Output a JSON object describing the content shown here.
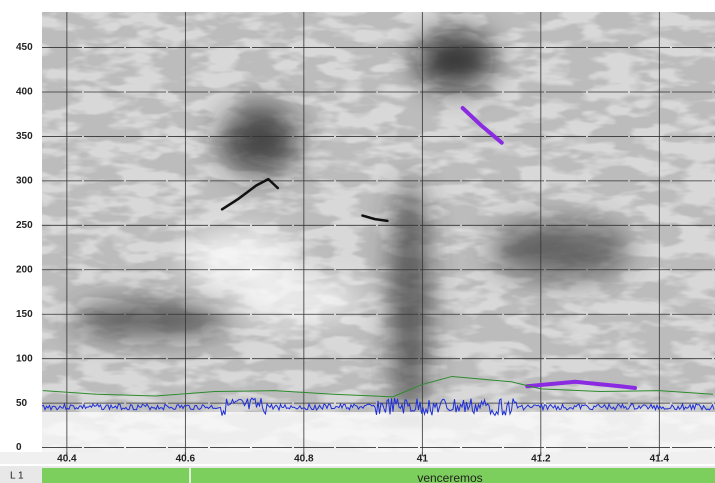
{
  "chart_data": {
    "type": "line",
    "xlim": [
      40.358,
      41.494
    ],
    "ylim": [
      -5,
      490
    ],
    "xticks": [
      40.4,
      40.6,
      40.8,
      41,
      41.2,
      41.4
    ],
    "yticks": [
      0,
      50,
      100,
      150,
      200,
      250,
      300,
      350,
      400,
      450
    ],
    "grid": true,
    "series": [
      {
        "color": "#111111",
        "x": [
          40.662,
          40.69,
          40.72,
          40.74,
          40.756
        ],
        "values": [
          268,
          280,
          295,
          302,
          292
        ]
      },
      {
        "color": "#111111",
        "x": [
          40.899,
          40.92,
          40.941
        ],
        "values": [
          261,
          257,
          255
        ]
      },
      {
        "color": "#8a2be2",
        "x": [
          41.068,
          41.1,
          41.134
        ],
        "values": [
          382,
          362,
          343
        ]
      },
      {
        "color": "#8a2be2",
        "x": [
          41.177,
          41.258,
          41.334,
          41.359
        ],
        "values": [
          69,
          74,
          69,
          67
        ]
      },
      {
        "color": "#2e8b2e",
        "x": [
          40.36,
          40.45,
          40.55,
          40.65,
          40.75,
          40.85,
          40.95,
          41.0,
          41.05,
          41.1,
          41.15,
          41.2,
          41.3,
          41.4,
          41.49
        ],
        "values": [
          64,
          60,
          58,
          63,
          64,
          60,
          57,
          71,
          80,
          77,
          74,
          66,
          63,
          64,
          60
        ]
      }
    ]
  },
  "tier": {
    "name": "L 1",
    "label": "venceremos"
  }
}
